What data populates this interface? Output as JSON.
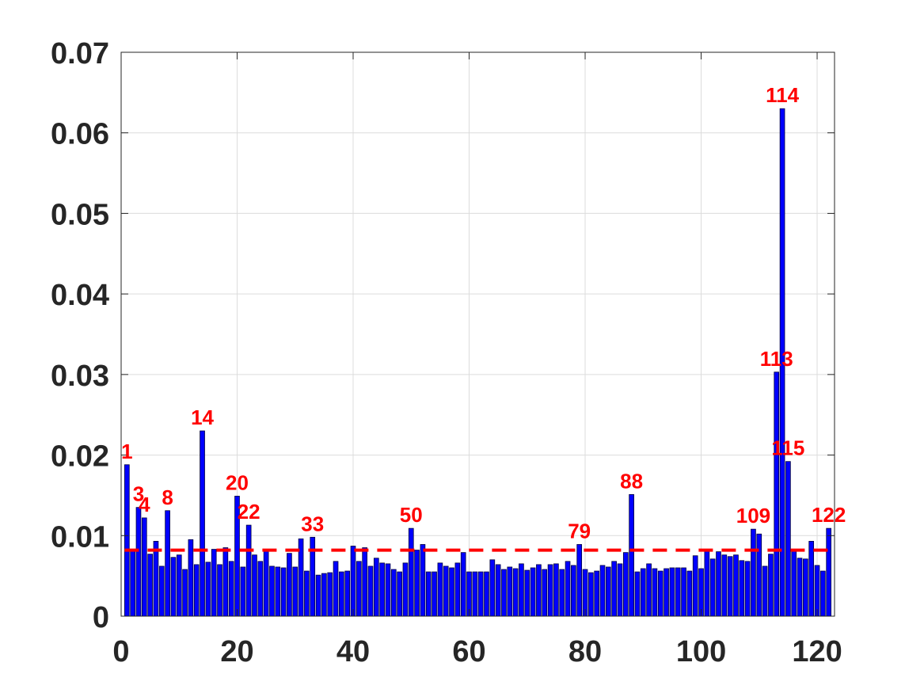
{
  "chart_data": {
    "type": "bar",
    "xlim": [
      0,
      123
    ],
    "ylim": [
      0,
      0.07
    ],
    "xticks": [
      0,
      20,
      40,
      60,
      80,
      100,
      120
    ],
    "yticks": [
      0,
      0.01,
      0.02,
      0.03,
      0.04,
      0.05,
      0.06,
      0.07
    ],
    "xtick_labels": [
      "0",
      "20",
      "40",
      "60",
      "80",
      "100",
      "120"
    ],
    "ytick_labels": [
      "0",
      "0.01",
      "0.02",
      "0.03",
      "0.04",
      "0.05",
      "0.06",
      "0.07"
    ],
    "grid": true,
    "bar_color": "#0000ff",
    "bar_edge_color": "#00003c",
    "threshold": {
      "value": 0.0082,
      "color": "#ff0000",
      "style": "dashed"
    },
    "label_color": "#ff0000",
    "x": [
      1,
      2,
      3,
      4,
      5,
      6,
      7,
      8,
      9,
      10,
      11,
      12,
      13,
      14,
      15,
      16,
      17,
      18,
      19,
      20,
      21,
      22,
      23,
      24,
      25,
      26,
      27,
      28,
      29,
      30,
      31,
      32,
      33,
      34,
      35,
      36,
      37,
      38,
      39,
      40,
      41,
      42,
      43,
      44,
      45,
      46,
      47,
      48,
      49,
      50,
      51,
      52,
      53,
      54,
      55,
      56,
      57,
      58,
      59,
      60,
      61,
      62,
      63,
      64,
      65,
      66,
      67,
      68,
      69,
      70,
      71,
      72,
      73,
      74,
      75,
      76,
      77,
      78,
      79,
      80,
      81,
      82,
      83,
      84,
      85,
      86,
      87,
      88,
      89,
      90,
      91,
      92,
      93,
      94,
      95,
      96,
      97,
      98,
      99,
      100,
      101,
      102,
      103,
      104,
      105,
      106,
      107,
      108,
      109,
      110,
      111,
      112,
      113,
      114,
      115,
      116,
      117,
      118,
      119,
      120,
      121,
      122
    ],
    "values": [
      0.0188,
      0.0082,
      0.0135,
      0.0122,
      0.0077,
      0.0093,
      0.0062,
      0.0131,
      0.0073,
      0.0076,
      0.0058,
      0.0095,
      0.0064,
      0.023,
      0.0067,
      0.0083,
      0.0064,
      0.0085,
      0.0068,
      0.0149,
      0.0061,
      0.0113,
      0.0076,
      0.0068,
      0.0082,
      0.0062,
      0.0061,
      0.006,
      0.0078,
      0.0061,
      0.0096,
      0.0056,
      0.0098,
      0.0051,
      0.0053,
      0.0054,
      0.0068,
      0.0055,
      0.0056,
      0.0087,
      0.0068,
      0.0085,
      0.0062,
      0.0072,
      0.0066,
      0.0065,
      0.0058,
      0.0055,
      0.0066,
      0.0109,
      0.0082,
      0.0089,
      0.0055,
      0.0055,
      0.0066,
      0.0062,
      0.006,
      0.0066,
      0.0079,
      0.0055,
      0.0055,
      0.0055,
      0.0055,
      0.007,
      0.0064,
      0.0058,
      0.0061,
      0.0059,
      0.0065,
      0.0057,
      0.006,
      0.0064,
      0.0058,
      0.0064,
      0.0065,
      0.0058,
      0.0068,
      0.0063,
      0.0089,
      0.0058,
      0.0054,
      0.0056,
      0.0063,
      0.0061,
      0.0068,
      0.0065,
      0.0079,
      0.0151,
      0.0055,
      0.0059,
      0.0065,
      0.0059,
      0.0056,
      0.0059,
      0.006,
      0.006,
      0.006,
      0.0056,
      0.0075,
      0.0059,
      0.0083,
      0.0071,
      0.008,
      0.0076,
      0.0074,
      0.0076,
      0.0069,
      0.0068,
      0.0108,
      0.0102,
      0.0062,
      0.0077,
      0.0303,
      0.063,
      0.0192,
      0.0082,
      0.0072,
      0.0071,
      0.0093,
      0.0063,
      0.0056,
      0.0109
    ],
    "annotations": [
      {
        "x": 1,
        "text": "1"
      },
      {
        "x": 3,
        "text": "3"
      },
      {
        "x": 4,
        "text": "4"
      },
      {
        "x": 8,
        "text": "8"
      },
      {
        "x": 14,
        "text": "14"
      },
      {
        "x": 20,
        "text": "20"
      },
      {
        "x": 22,
        "text": "22"
      },
      {
        "x": 33,
        "text": "33"
      },
      {
        "x": 50,
        "text": "50"
      },
      {
        "x": 79,
        "text": "79"
      },
      {
        "x": 88,
        "text": "88"
      },
      {
        "x": 109,
        "text": "109"
      },
      {
        "x": 113,
        "text": "113"
      },
      {
        "x": 114,
        "text": "114"
      },
      {
        "x": 115,
        "text": "115"
      },
      {
        "x": 122,
        "text": "122"
      }
    ]
  }
}
